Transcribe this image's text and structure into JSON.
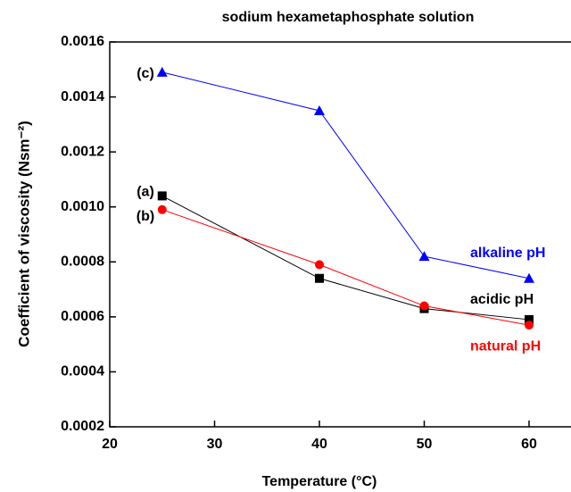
{
  "chart_data": {
    "type": "line",
    "title": "sodium hexametaphosphate solution",
    "xlabel": "Temperature (°C)",
    "ylabel": "Coefficient of viscosity (Nsm⁻²)",
    "x": [
      25,
      40,
      50,
      60
    ],
    "series": [
      {
        "name": "alkaline pH",
        "color": "#0000ff",
        "marker": "triangle",
        "values": [
          0.00149,
          0.00135,
          0.00082,
          0.00074
        ]
      },
      {
        "name": "acidic pH",
        "color": "#000000",
        "marker": "square",
        "values": [
          0.00104,
          0.00074,
          0.00063,
          0.00059
        ]
      },
      {
        "name": "natural pH",
        "color": "#ff0000",
        "marker": "circle",
        "values": [
          0.00099,
          0.00079,
          0.00064,
          0.00057
        ]
      }
    ],
    "annotations": [
      "(c)",
      "(a)",
      "(b)"
    ],
    "xlim": [
      20,
      64
    ],
    "xticks": [
      20,
      30,
      40,
      50,
      60
    ],
    "ylim": [
      0.0002,
      0.0016
    ],
    "yticks": [
      0.0002,
      0.0004,
      0.0006,
      0.0008,
      {
        "value": 0.001,
        "label": "0.0010"
      },
      0.0012,
      0.0014,
      0.0016
    ]
  }
}
